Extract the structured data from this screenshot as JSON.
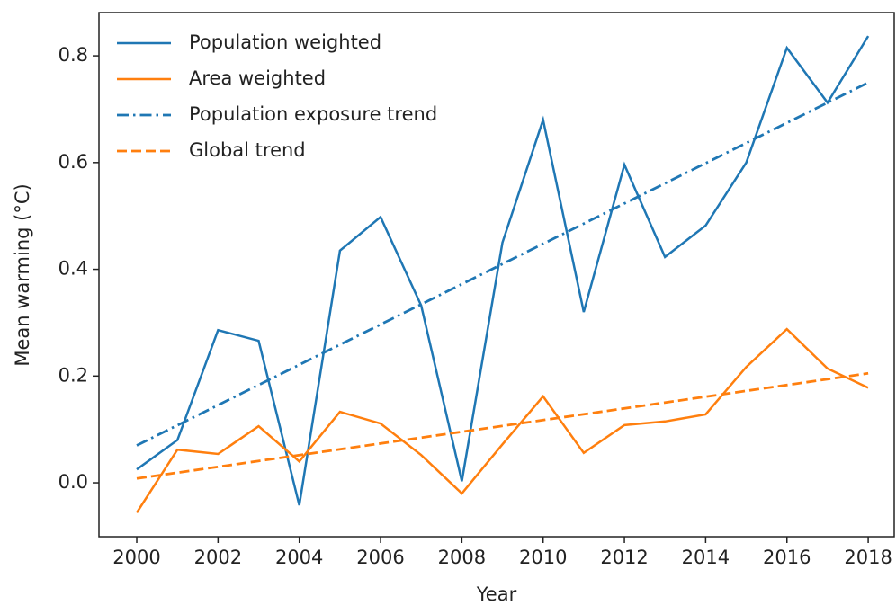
{
  "chart_data": {
    "type": "line",
    "x_label": "Year",
    "y_label": "Mean warming (°C)",
    "xlim": [
      1999.07,
      2018.64
    ],
    "xticks": [
      2000,
      2002,
      2004,
      2006,
      2008,
      2010,
      2012,
      2014,
      2016,
      2018
    ],
    "ylim": [
      -0.101,
      0.881
    ],
    "yticks": [
      {
        "value": 0,
        "label": "0.0"
      },
      0.2,
      0.4,
      0.6,
      0.8
    ],
    "legend": "upper left",
    "series": [
      {
        "name": "Population weighted",
        "color": "#1f77b4",
        "linestyle": "solid",
        "x": [
          2000,
          2001,
          2002,
          2003,
          2004,
          2005,
          2006,
          2007,
          2008,
          2009,
          2010,
          2011,
          2012,
          2013,
          2014,
          2015,
          2016,
          2017,
          2018
        ],
        "values": [
          0.025,
          0.08,
          0.286,
          0.266,
          -0.042,
          0.435,
          0.498,
          0.332,
          0.003,
          0.45,
          0.68,
          0.32,
          0.596,
          0.423,
          0.482,
          0.6,
          0.815,
          0.712,
          0.837
        ]
      },
      {
        "name": "Area weighted",
        "color": "#ff7f0e",
        "linestyle": "solid",
        "x": [
          2000,
          2001,
          2002,
          2003,
          2004,
          2005,
          2006,
          2007,
          2008,
          2009,
          2010,
          2011,
          2012,
          2013,
          2014,
          2015,
          2016,
          2017,
          2018
        ],
        "values": [
          -0.056,
          0.062,
          0.054,
          0.106,
          0.04,
          0.133,
          0.111,
          0.052,
          -0.02,
          0.072,
          0.162,
          0.056,
          0.108,
          0.115,
          0.128,
          0.217,
          0.288,
          0.214,
          0.178
        ]
      },
      {
        "name": "Population exposure trend",
        "color": "#1f77b4",
        "linestyle": "dashdot",
        "x": [
          2000,
          2018
        ],
        "values": [
          0.07,
          0.75
        ]
      },
      {
        "name": "Global trend",
        "color": "#ff7f0e",
        "linestyle": "dashed",
        "x": [
          2000,
          2018
        ],
        "values": [
          0.008,
          0.205
        ]
      }
    ]
  }
}
